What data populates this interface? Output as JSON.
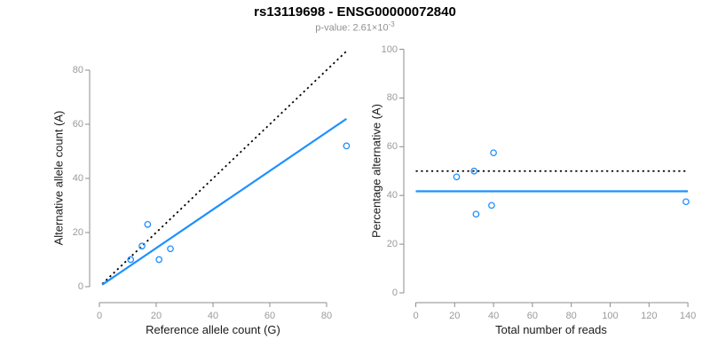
{
  "header": {
    "title": "rs13119698 - ENSG00000072840",
    "p_value_text": "p-value: 2.61×10",
    "p_value_exponent": "-3"
  },
  "colors": {
    "accent_blue": "#1E90FF",
    "identity_black": "#000000",
    "axis_gray": "#8C8C8C",
    "tick_label_gray": "#9A9A9A",
    "subtitle_gray": "#919191"
  },
  "chart_data": [
    {
      "type": "scatter",
      "name": "allele-counts",
      "xlabel": "Reference allele count (G)",
      "ylabel": "Alternative allele count (A)",
      "xlim": [
        0,
        87
      ],
      "ylim": [
        0,
        87
      ],
      "x_ticks": [
        0,
        20,
        40,
        60,
        80
      ],
      "y_ticks": [
        0,
        20,
        40,
        60,
        80
      ],
      "grid": false,
      "points": [
        [
          11,
          10
        ],
        [
          15,
          15
        ],
        [
          17,
          23
        ],
        [
          21,
          10
        ],
        [
          25,
          14
        ],
        [
          87,
          52
        ]
      ],
      "lines": [
        {
          "name": "identity-line",
          "style": "dotted",
          "color": "#000000",
          "from": [
            1,
            1
          ],
          "to": [
            87,
            87
          ]
        },
        {
          "name": "regression-line",
          "style": "solid",
          "color": "#1E90FF",
          "from": [
            1,
            0.72
          ],
          "to": [
            87,
            62
          ]
        }
      ]
    },
    {
      "type": "scatter",
      "name": "percentage-vs-reads",
      "xlabel": "Total number of reads",
      "ylabel": "Percentage alternative (A)",
      "xlim": [
        0,
        140
      ],
      "ylim": [
        0,
        100
      ],
      "x_ticks": [
        0,
        20,
        40,
        60,
        80,
        100,
        120,
        140
      ],
      "y_ticks": [
        0,
        20,
        40,
        60,
        80,
        100
      ],
      "grid": false,
      "points": [
        [
          21,
          47.6
        ],
        [
          30,
          50
        ],
        [
          31,
          32.3
        ],
        [
          39,
          35.9
        ],
        [
          40,
          57.5
        ],
        [
          139,
          37.4
        ]
      ],
      "lines": [
        {
          "name": "expected-50pct-line",
          "style": "dotted",
          "color": "#000000",
          "from": [
            0,
            50
          ],
          "to": [
            140,
            50
          ]
        },
        {
          "name": "mean-percentage-line",
          "style": "solid",
          "color": "#1E90FF",
          "from": [
            0,
            41.7
          ],
          "to": [
            140,
            41.7
          ]
        }
      ]
    }
  ]
}
